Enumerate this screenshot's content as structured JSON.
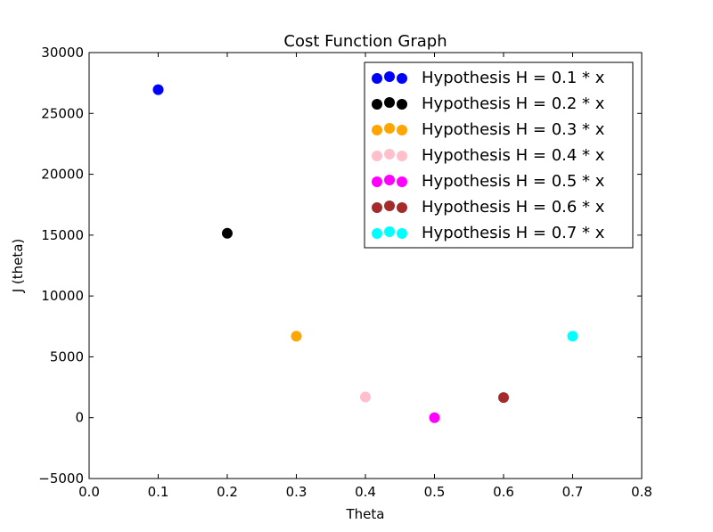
{
  "chart_data": {
    "type": "scatter",
    "title": "Cost Function Graph",
    "xlabel": "Theta",
    "ylabel": "J (theta)",
    "xlim": [
      0.0,
      0.8
    ],
    "ylim": [
      -5000,
      30000
    ],
    "xticks": [
      0.0,
      0.1,
      0.2,
      0.3,
      0.4,
      0.5,
      0.6,
      0.7,
      0.8
    ],
    "xtick_labels": [
      "0.0",
      "0.1",
      "0.2",
      "0.3",
      "0.4",
      "0.5",
      "0.6",
      "0.7",
      "0.8"
    ],
    "yticks": [
      -5000,
      0,
      5000,
      10000,
      15000,
      20000,
      25000,
      30000
    ],
    "ytick_labels": [
      "−5000",
      "0",
      "5000",
      "10000",
      "15000",
      "20000",
      "25000",
      "30000"
    ],
    "grid": false,
    "legend_position": "top-right",
    "series": [
      {
        "name": "Hypothesis H = 0.1 * x",
        "x": [
          0.1
        ],
        "y": [
          26950
        ],
        "color": "#0000ff"
      },
      {
        "name": "Hypothesis H = 0.2 * x",
        "x": [
          0.2
        ],
        "y": [
          15150
        ],
        "color": "#000000"
      },
      {
        "name": "Hypothesis H = 0.3 * x",
        "x": [
          0.3
        ],
        "y": [
          6700
        ],
        "color": "#ffa500"
      },
      {
        "name": "Hypothesis H = 0.4 * x",
        "x": [
          0.4
        ],
        "y": [
          1700
        ],
        "color": "#ffc0cb"
      },
      {
        "name": "Hypothesis H = 0.5 * x",
        "x": [
          0.5
        ],
        "y": [
          0
        ],
        "color": "#ff00ff"
      },
      {
        "name": "Hypothesis H = 0.6 * x",
        "x": [
          0.6
        ],
        "y": [
          1650
        ],
        "color": "#a52a2a"
      },
      {
        "name": "Hypothesis H = 0.7 * x",
        "x": [
          0.7
        ],
        "y": [
          6700
        ],
        "color": "#00ffff"
      }
    ]
  }
}
